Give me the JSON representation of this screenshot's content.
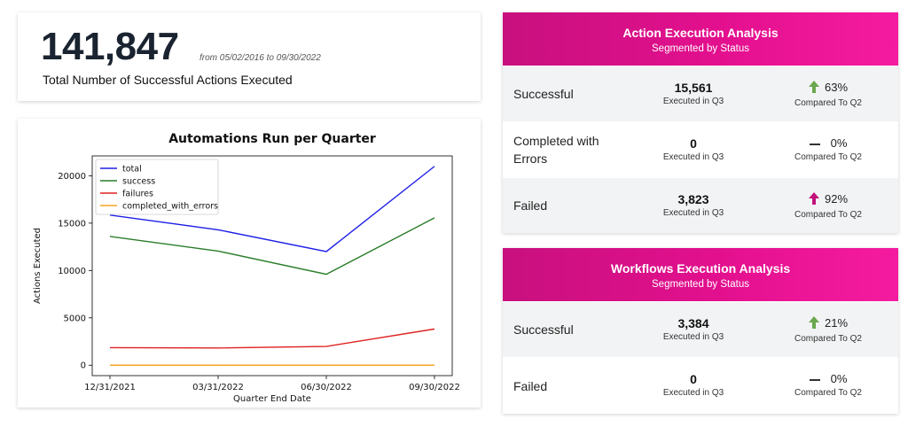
{
  "kpi": {
    "value": "141,847",
    "range": "from 05/02/2016 to 09/30/2022",
    "caption": "Total Number of Successful Actions Executed"
  },
  "colors": {
    "accent": "#e3108e",
    "up_green": "#6aa84f",
    "up_magenta": "#c0127a"
  },
  "chart_data": {
    "type": "line",
    "title": "Automations Run per Quarter",
    "xlabel": "Quarter End Date",
    "ylabel": "Actions Executed",
    "categories": [
      "12/31/2021",
      "03/31/2022",
      "06/30/2022",
      "09/30/2022"
    ],
    "yticks": [
      0,
      5000,
      10000,
      15000,
      20000
    ],
    "ytick_labels": [
      "0",
      "5000",
      "10000",
      "15000",
      "20000"
    ],
    "ylim": [
      -1100,
      22100
    ],
    "grid": false,
    "legend": "top-left",
    "series": [
      {
        "name": "total",
        "color": "#1f1fe6",
        "values": [
          15850,
          14300,
          12000,
          21000
        ]
      },
      {
        "name": "success",
        "color": "#2a7d2a",
        "values": [
          13600,
          12050,
          9600,
          15561
        ]
      },
      {
        "name": "failures",
        "color": "#e02020",
        "values": [
          1850,
          1820,
          1980,
          3823
        ]
      },
      {
        "name": "completed_with_errors",
        "color": "#f5a623",
        "values": [
          0,
          0,
          0,
          0
        ]
      }
    ]
  },
  "action_panel": {
    "title": "Action Execution Analysis",
    "subtitle": "Segmented by Status",
    "rows": [
      {
        "label": "Successful",
        "value": "15,561",
        "value_caption": "Executed in Q3",
        "pct": "63%",
        "trend": "up",
        "trend_color": "#6aa84f",
        "cmp_caption": "Compared To Q2"
      },
      {
        "label": "Completed with Errors",
        "value": "0",
        "value_caption": "Executed in Q3",
        "pct": "0%",
        "trend": "flat",
        "cmp_caption": "Compared To Q2"
      },
      {
        "label": "Failed",
        "value": "3,823",
        "value_caption": "Executed in Q3",
        "pct": "92%",
        "trend": "up",
        "trend_color": "#c0127a",
        "cmp_caption": "Compared To Q2"
      }
    ]
  },
  "workflow_panel": {
    "title": "Workflows Execution Analysis",
    "subtitle": "Segmented by Status",
    "rows": [
      {
        "label": "Successful",
        "value": "3,384",
        "value_caption": "Executed in Q3",
        "pct": "21%",
        "trend": "up",
        "trend_color": "#6aa84f",
        "cmp_caption": "Compared To Q2"
      },
      {
        "label": "Failed",
        "value": "0",
        "value_caption": "Executed in Q3",
        "pct": "0%",
        "trend": "flat",
        "cmp_caption": "Compared To Q2"
      }
    ]
  }
}
